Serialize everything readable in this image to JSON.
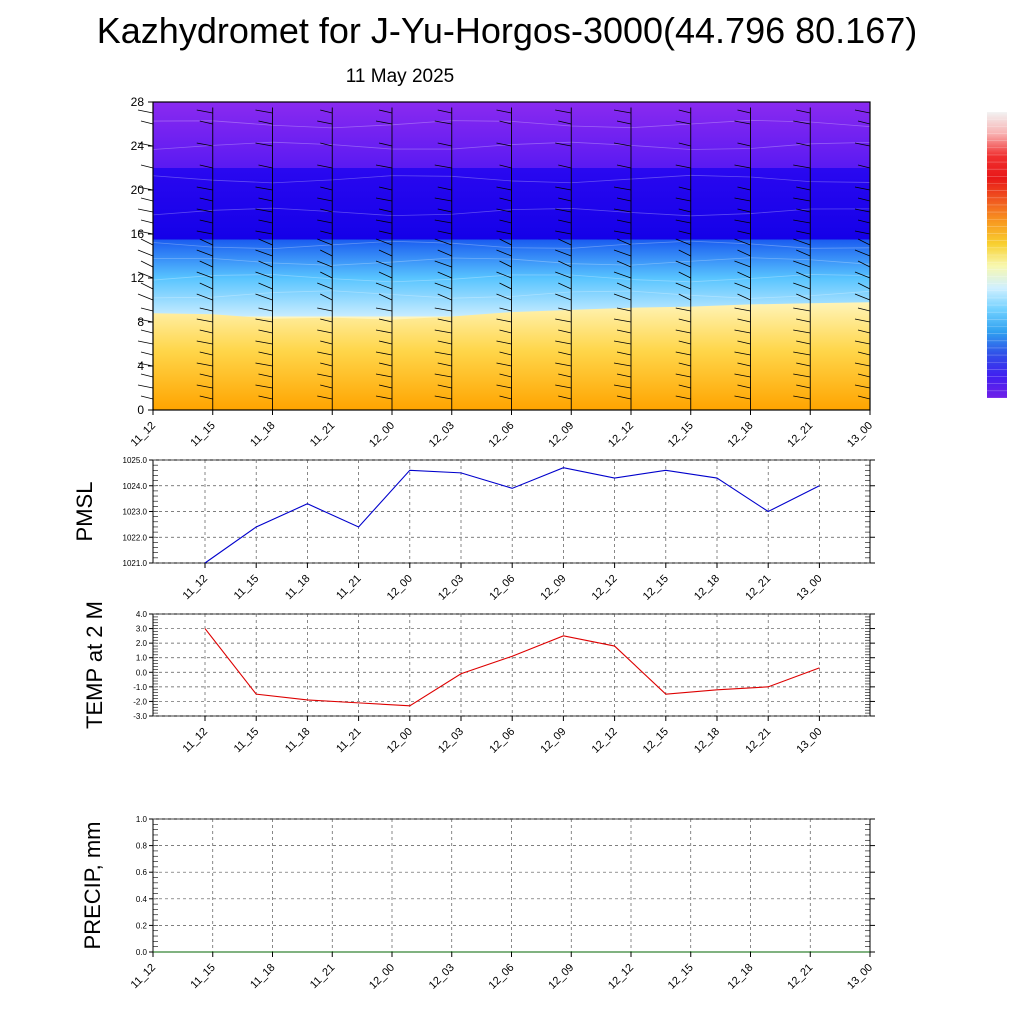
{
  "title": "Kazhydromet for J-Yu-Horgos-3000(44.796 80.167)",
  "subtitle": "11 May 2025",
  "colors": {
    "pmsl_line": "#0000cc",
    "temp_line": "#dd0000",
    "precip_line": "#006600",
    "grid": "#555555"
  },
  "chart_data": [
    {
      "type": "heatmap",
      "x": [
        "11_12",
        "11_15",
        "11_18",
        "11_21",
        "12_00",
        "12_03",
        "12_06",
        "12_09",
        "12_12",
        "12_15",
        "12_18",
        "12_21",
        "13_00"
      ],
      "ylim": [
        0,
        28
      ],
      "yticks": [
        0,
        4,
        8,
        12,
        16,
        20,
        24,
        28
      ],
      "bands": [
        {
          "from": 0,
          "to": 8.5,
          "colors": [
            "#ffa800",
            "#ffd84a",
            "#fff6c0"
          ]
        },
        {
          "from": 8.5,
          "to": 15.5,
          "colors": [
            "#c8ecff",
            "#58c4ff",
            "#1a5cf0"
          ]
        },
        {
          "from": 15.5,
          "to": 22,
          "colors": [
            "#1400e8",
            "#2a08f0"
          ]
        },
        {
          "from": 22,
          "to": 28,
          "colors": [
            "#5a1af2",
            "#8a2af0"
          ]
        }
      ],
      "warm_top": [
        8.8,
        8.7,
        8.3,
        8.4,
        8.2,
        8.5,
        8.9,
        9.1,
        9.3,
        9.4,
        9.6,
        9.7,
        9.8
      ],
      "colorbar": [
        "#f2f2f2",
        "#f8b0b0",
        "#f03030",
        "#e81818",
        "#f05820",
        "#f89a20",
        "#f8d030",
        "#f8f8b0",
        "#d0f0ff",
        "#70d0ff",
        "#30a0f0",
        "#3050e8",
        "#4020f0",
        "#7020e8"
      ],
      "wind_barbs": true
    },
    {
      "type": "line",
      "ylabel": "PMSL",
      "x": [
        "11_12",
        "11_15",
        "11_18",
        "11_21",
        "12_00",
        "12_03",
        "12_06",
        "12_09",
        "12_12",
        "12_15",
        "12_18",
        "12_21",
        "13_00"
      ],
      "values": [
        1021.0,
        1022.4,
        1023.3,
        1022.4,
        1024.6,
        1024.5,
        1023.9,
        1024.7,
        1024.3,
        1024.6,
        1024.3,
        1023.0,
        1024.0
      ],
      "ylim": [
        1021.0,
        1025.0
      ],
      "yticks": [
        "1021.0",
        "1022.0",
        "1023.0",
        "1024.0",
        "1025.0"
      ],
      "grid": true
    },
    {
      "type": "line",
      "ylabel": "TEMP at 2 M",
      "x": [
        "11_12",
        "11_15",
        "11_18",
        "11_21",
        "12_00",
        "12_03",
        "12_06",
        "12_09",
        "12_12",
        "12_15",
        "12_18",
        "12_21",
        "13_00"
      ],
      "values": [
        3.0,
        -1.5,
        -1.9,
        -2.1,
        -2.3,
        -0.1,
        1.1,
        2.5,
        1.8,
        -1.5,
        -1.2,
        -1.0,
        0.3
      ],
      "ylim": [
        -3.0,
        4.0
      ],
      "yticks": [
        "-3.0",
        "-2.0",
        "-1.0",
        "0.0",
        "1.0",
        "2.0",
        "3.0",
        "4.0"
      ],
      "grid": true
    },
    {
      "type": "line",
      "ylabel": "PRECIP, mm",
      "x": [
        "11_12",
        "11_15",
        "11_18",
        "11_21",
        "12_00",
        "12_03",
        "12_06",
        "12_09",
        "12_12",
        "12_15",
        "12_18",
        "12_21",
        "13_00"
      ],
      "values": [
        0.0,
        0.0,
        0.0,
        0.0,
        0.0,
        0.0,
        0.0,
        0.0,
        0.0,
        0.0,
        0.0,
        0.0,
        0.0
      ],
      "ylim": [
        0.0,
        1.0
      ],
      "yticks": [
        "0.0",
        "0.2",
        "0.4",
        "0.6",
        "0.8",
        "1.0"
      ],
      "grid": true
    }
  ]
}
